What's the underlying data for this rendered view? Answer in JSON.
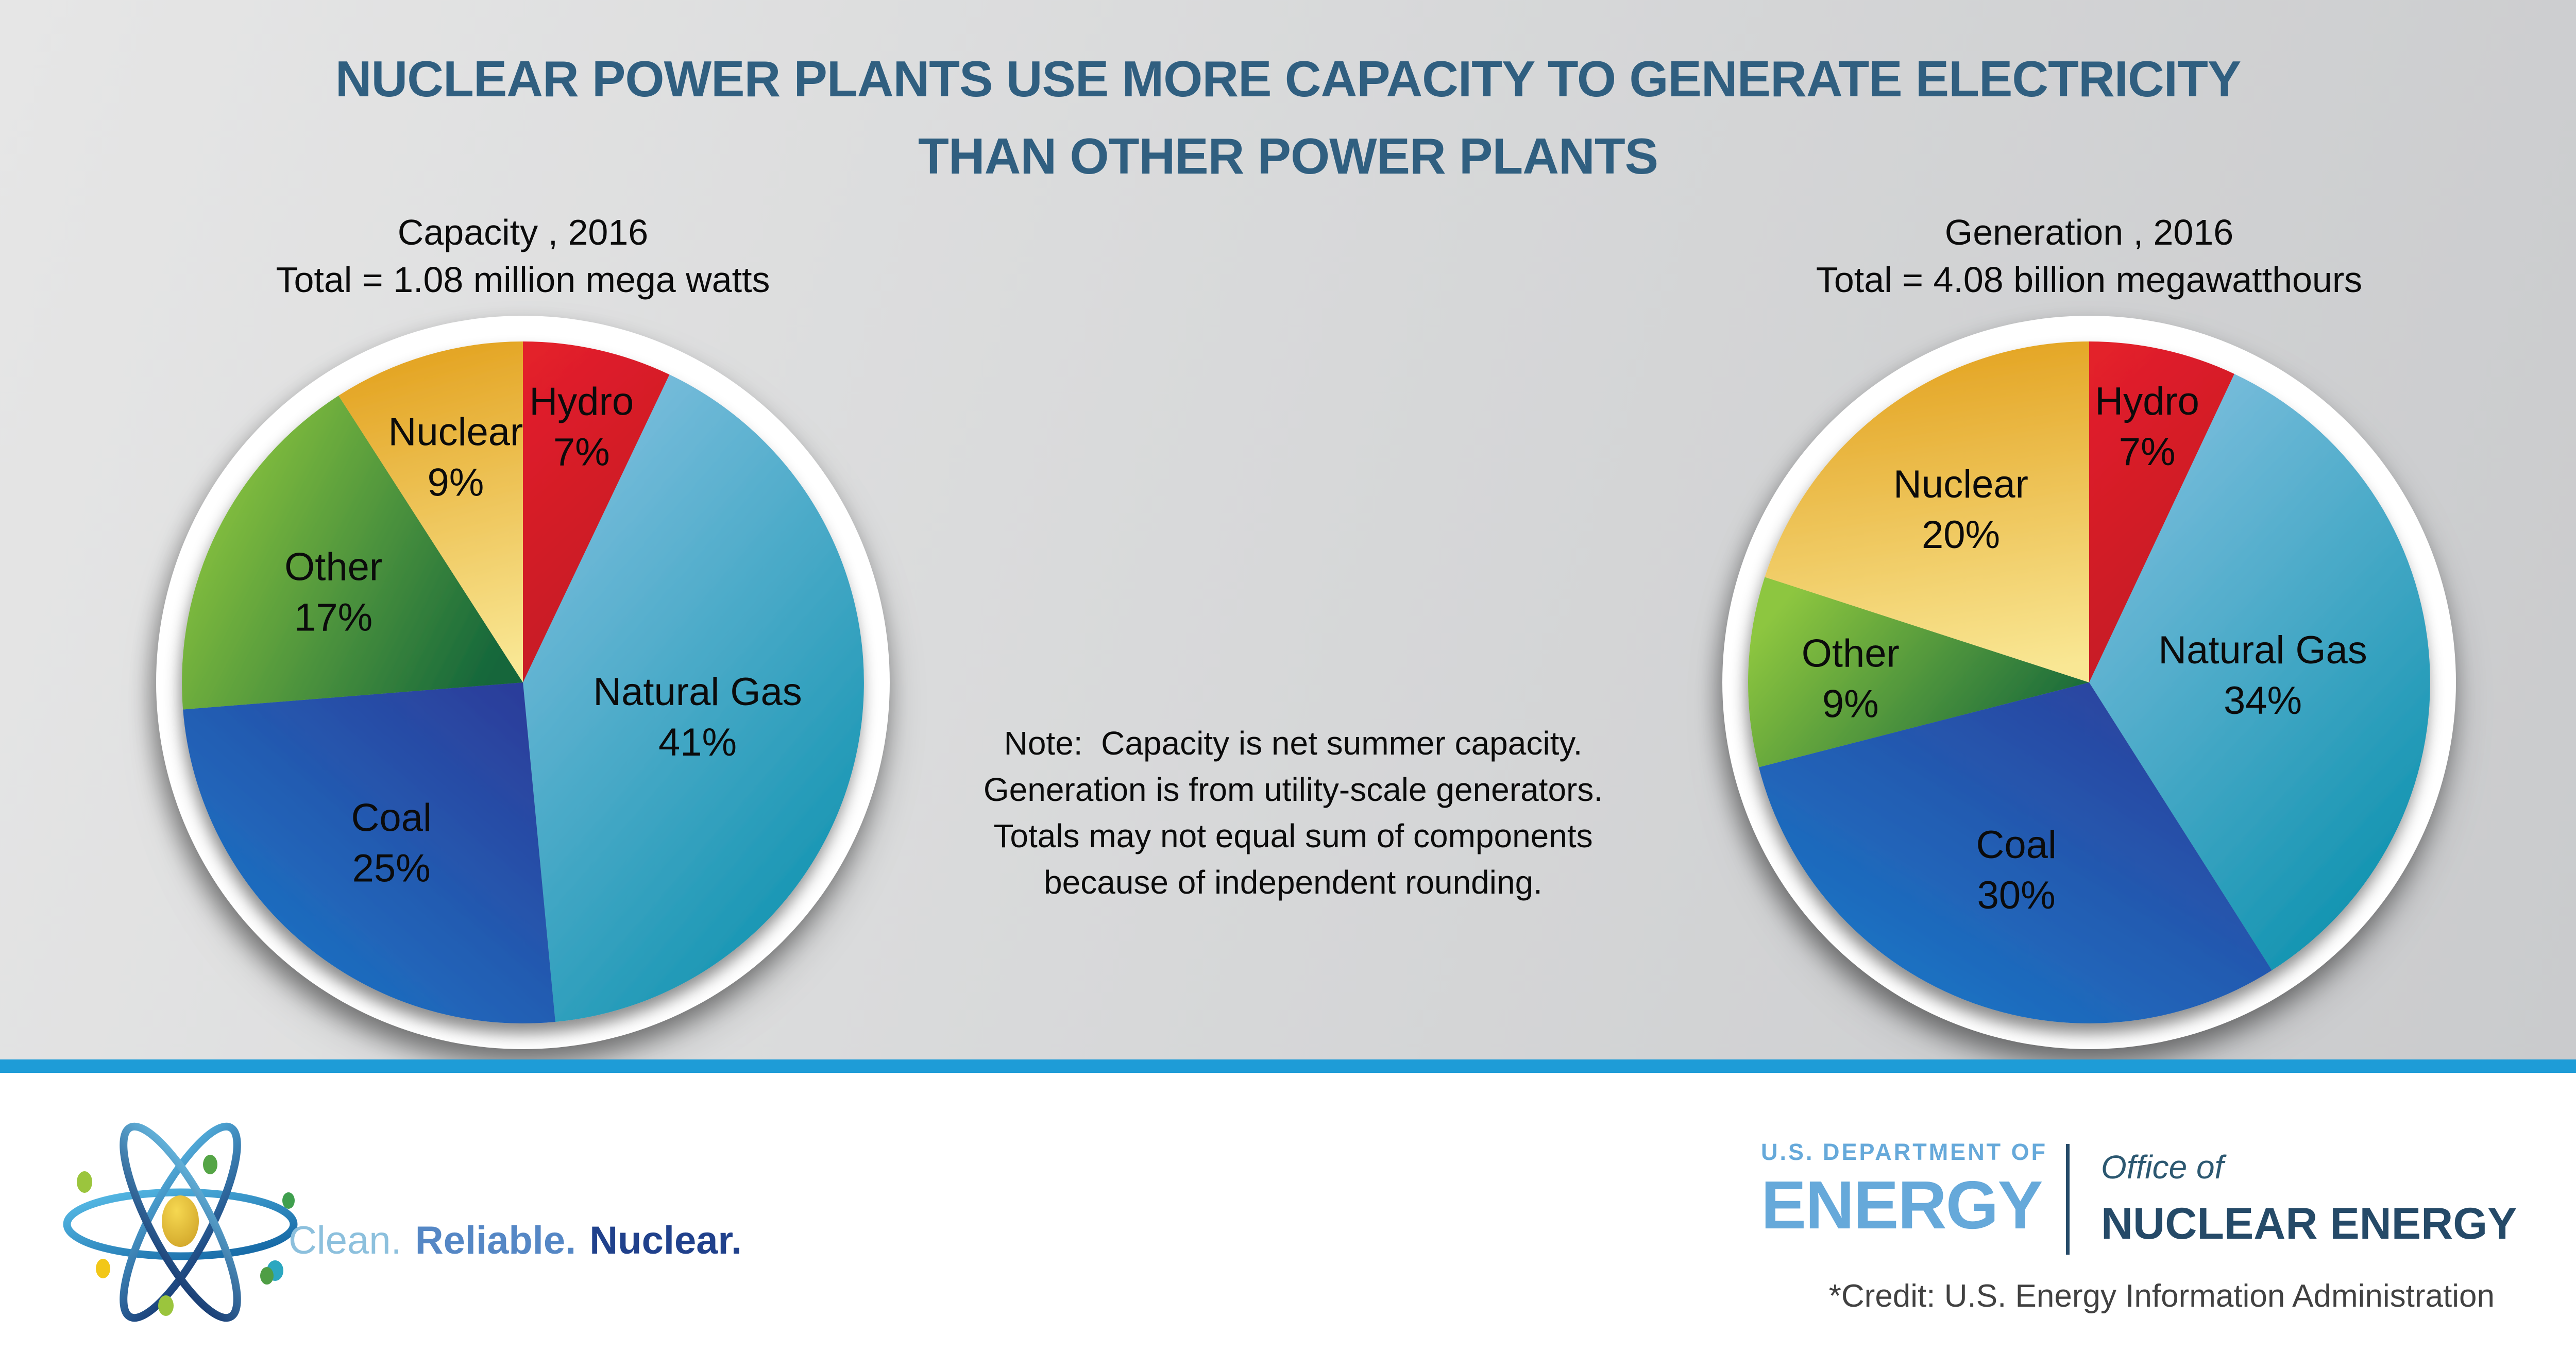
{
  "title": {
    "line1": "NUCLEAR POWER PLANTS USE MORE CAPACITY TO GENERATE ELECTRICITY",
    "line2": "THAN OTHER POWER PLANTS"
  },
  "note_lines": [
    "Note:  Capacity is net summer capacity.",
    "Generation is from utility-scale generators.",
    "Totals may not equal sum of components",
    "because of independent rounding."
  ],
  "chart_data": [
    {
      "type": "pie",
      "title": "Capacity , 2016",
      "subtitle": "Total = 1.08 million mega watts",
      "units": "percent",
      "start_angle_deg": 0,
      "direction": "clockwise",
      "legend_position": "inside-slices",
      "slices": [
        {
          "label": "Hydro",
          "value": 7,
          "display": "7%",
          "colors": [
            "#e3202b",
            "#c01823"
          ],
          "grad": [
            0.2,
            0.0,
            0.6,
            1.0
          ],
          "label_r": 0.78
        },
        {
          "label": "Natural Gas",
          "value": 41,
          "display": "41%",
          "colors": [
            "#7cbedd",
            "#1193b0"
          ],
          "grad": [
            0.2,
            0.05,
            0.75,
            0.95
          ],
          "label_r": 0.52
        },
        {
          "label": "Coal",
          "value": 25,
          "display": "25%",
          "colors": [
            "#2c3e9b",
            "#1a79c8"
          ],
          "grad": [
            0.9,
            0.05,
            0.1,
            0.9
          ],
          "label_r": 0.6
        },
        {
          "label": "Other",
          "value": 17,
          "display": "17%",
          "colors": [
            "#8dc63f",
            "#14663a"
          ],
          "grad": [
            0.0,
            0.35,
            0.95,
            0.8
          ],
          "label_r": 0.62
        },
        {
          "label": "Nuclear",
          "value": 9,
          "display": "9%",
          "colors": [
            "#e3a21f",
            "#f9e794"
          ],
          "grad": [
            0.45,
            0.0,
            0.6,
            1.0
          ],
          "label_r": 0.7
        }
      ]
    },
    {
      "type": "pie",
      "title": "Generation , 2016",
      "subtitle": "Total = 4.08 billion megawatthours",
      "units": "percent",
      "start_angle_deg": 0,
      "direction": "clockwise",
      "legend_position": "inside-slices",
      "slices": [
        {
          "label": "Hydro",
          "value": 7,
          "display": "7%",
          "colors": [
            "#e3202b",
            "#c01823"
          ],
          "grad": [
            0.2,
            0.0,
            0.6,
            1.0
          ],
          "label_r": 0.78
        },
        {
          "label": "Natural Gas",
          "value": 34,
          "display": "34%",
          "colors": [
            "#7cbedd",
            "#1193b0"
          ],
          "grad": [
            0.2,
            0.05,
            0.75,
            0.95
          ],
          "label_r": 0.51
        },
        {
          "label": "Coal",
          "value": 30,
          "display": "30%",
          "colors": [
            "#2c3e9b",
            "#1a79c8"
          ],
          "grad": [
            0.9,
            0.05,
            0.1,
            0.9
          ],
          "label_r": 0.58
        },
        {
          "label": "Other",
          "value": 9,
          "display": "9%",
          "colors": [
            "#8dc63f",
            "#14663a"
          ],
          "grad": [
            0.0,
            0.35,
            0.95,
            0.8
          ],
          "label_r": 0.7
        },
        {
          "label": "Nuclear",
          "value": 20,
          "display": "20%",
          "colors": [
            "#e3a21f",
            "#f9e794"
          ],
          "grad": [
            0.45,
            0.0,
            0.6,
            1.0
          ],
          "label_r": 0.64
        }
      ]
    }
  ],
  "footer": {
    "tagline": [
      {
        "text": "Clean.",
        "color": "#8cc0dd",
        "weight": 400
      },
      {
        "text": "Reliable.",
        "color": "#5587c5",
        "weight": 700
      },
      {
        "text": "Nuclear.",
        "color": "#20418c",
        "weight": 700
      }
    ],
    "doe_department": "U.S. DEPARTMENT OF",
    "doe_energy": "ENERGY",
    "office_of": "Office of",
    "office_name": "NUCLEAR ENERGY",
    "credit": "*Credit: U.S. Energy Information Administration"
  },
  "colors": {
    "divider_blue": "#1e9cd7",
    "title_blue": "#305f80",
    "footer_bg": "#ffffff",
    "label_black": "#0b0b0b",
    "doe_light_blue": "#66a9da",
    "doe_navy": "#254a68",
    "office_slate": "#2c5871",
    "credit_gray": "#414141",
    "plate_white": "#ffffff"
  }
}
